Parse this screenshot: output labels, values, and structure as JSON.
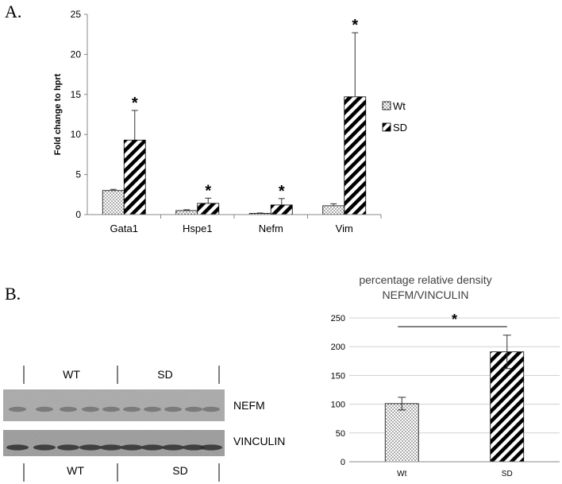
{
  "panel_labels": {
    "a": "A.",
    "b": "B."
  },
  "colors": {
    "ink": "#000000",
    "axis": "#888888",
    "grid": "#d0d0d0",
    "fill": "#ffffff"
  },
  "blot": {
    "top_groups": [
      "WT",
      "SD"
    ],
    "bottom_groups": [
      "WT",
      "SD"
    ],
    "bands": [
      "NEFM",
      "VINCULIN"
    ]
  },
  "chart_data": [
    {
      "type": "bar",
      "title": "",
      "xlabel": "",
      "ylabel": "Fold change to hprt",
      "categories": [
        "Gata1",
        "Hspe1",
        "Nefm",
        "Vim"
      ],
      "series": [
        {
          "name": "Wt",
          "pattern": "dots",
          "values": [
            3.0,
            0.5,
            0.15,
            1.1
          ],
          "errors": [
            0.15,
            0.1,
            0.05,
            0.25
          ]
        },
        {
          "name": "SD",
          "pattern": "stripes",
          "values": [
            9.3,
            1.4,
            1.2,
            14.7
          ],
          "errors": [
            3.7,
            0.65,
            0.8,
            8.0
          ]
        }
      ],
      "significance": [
        "*",
        "*",
        "*",
        "*"
      ],
      "ylim": [
        0,
        25
      ],
      "yticks": [
        0,
        5,
        10,
        15,
        20,
        25
      ],
      "legend": "right"
    },
    {
      "type": "bar",
      "title": "percentage relative density",
      "subtitle": "NEFM/VINCULIN",
      "xlabel": "",
      "ylabel": "",
      "categories": [
        "Wt",
        "SD"
      ],
      "series": [
        {
          "name": "density",
          "values": [
            101,
            191
          ],
          "errors": [
            11,
            29
          ],
          "patterns": [
            "dots",
            "stripes"
          ]
        }
      ],
      "significance": "*",
      "ylim": [
        0,
        250
      ],
      "yticks": [
        0,
        50,
        100,
        150,
        200,
        250
      ],
      "grid": true
    }
  ]
}
